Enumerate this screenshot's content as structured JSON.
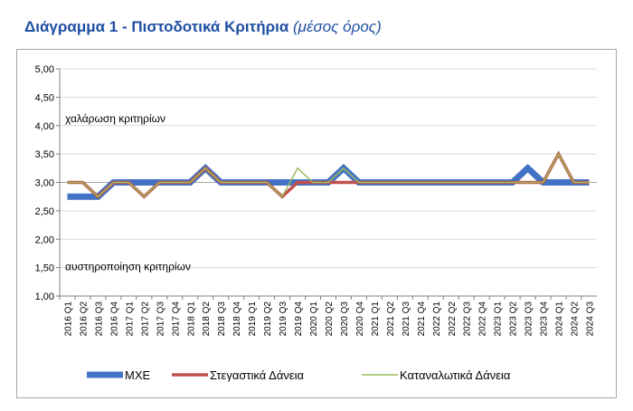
{
  "title": {
    "main": "Διάγραμμα 1 - Πιστοδοτικά Κριτήρια",
    "sub": "(μέσος όρος)"
  },
  "chart_data": {
    "type": "line",
    "categories": [
      "2016 Q1",
      "2016 Q2",
      "2016 Q3",
      "2016 Q4",
      "2017 Q1",
      "2017 Q2",
      "2017 Q3",
      "2017 Q4",
      "2018 Q1",
      "2018 Q2",
      "2018 Q3",
      "2018 Q4",
      "2019 Q1",
      "2019 Q2",
      "2019 Q3",
      "2019 Q4",
      "2020 Q1",
      "2020 Q2",
      "2020 Q3",
      "2020 Q4",
      "2021 Q1",
      "2021 Q2",
      "2021 Q3",
      "2021 Q4",
      "2022 Q1",
      "2022 Q2",
      "2022 Q3",
      "2022 Q4",
      "2023 Q1",
      "2023 Q2",
      "2023 Q3",
      "2023 Q4",
      "2024 Q1",
      "2024 Q2",
      "2024 Q3"
    ],
    "ylim": [
      1.0,
      5.0
    ],
    "yticks": [
      "1,00",
      "1,50",
      "2,00",
      "2,50",
      "3,00",
      "3,50",
      "4,00",
      "4,50",
      "5,00"
    ],
    "ytick_values": [
      1.0,
      1.5,
      2.0,
      2.5,
      3.0,
      3.5,
      4.0,
      4.5,
      5.0
    ],
    "reference_value": 3.0,
    "annotations": {
      "upper": "χαλάρωση κριτηρίων",
      "lower": "αυστηροποίηση κριτηρίων"
    },
    "legend_position": "bottom",
    "series": [
      {
        "name": "ΜΧΕ",
        "color": "#4472c4",
        "width": 7,
        "values": [
          2.75,
          2.75,
          2.75,
          3.0,
          3.0,
          3.0,
          3.0,
          3.0,
          3.0,
          3.25,
          3.0,
          3.0,
          3.0,
          3.0,
          3.0,
          3.0,
          3.0,
          3.0,
          3.25,
          3.0,
          3.0,
          3.0,
          3.0,
          3.0,
          3.0,
          3.0,
          3.0,
          3.0,
          3.0,
          3.0,
          3.25,
          3.0,
          3.0,
          3.0,
          3.0
        ]
      },
      {
        "name": "Στεγαστικά Δάνεια",
        "color": "#c0504d",
        "width": 3.5,
        "values": [
          3.0,
          3.0,
          2.75,
          3.0,
          3.0,
          2.75,
          3.0,
          3.0,
          3.0,
          3.25,
          3.0,
          3.0,
          3.0,
          3.0,
          2.75,
          3.0,
          3.0,
          3.0,
          3.0,
          3.0,
          3.0,
          3.0,
          3.0,
          3.0,
          3.0,
          3.0,
          3.0,
          3.0,
          3.0,
          3.0,
          3.0,
          3.0,
          3.5,
          3.0,
          3.0
        ]
      },
      {
        "name": "Καταναλωτικά Δάνεια",
        "color": "#9bbb59",
        "width": 1.5,
        "values": [
          3.0,
          3.0,
          2.75,
          3.0,
          3.0,
          2.75,
          3.0,
          3.0,
          3.0,
          3.25,
          3.0,
          3.0,
          3.0,
          3.0,
          2.75,
          3.25,
          3.0,
          3.0,
          3.25,
          3.0,
          3.0,
          3.0,
          3.0,
          3.0,
          3.0,
          3.0,
          3.0,
          3.0,
          3.0,
          3.0,
          3.0,
          3.0,
          3.5,
          3.0,
          3.0
        ]
      }
    ]
  }
}
